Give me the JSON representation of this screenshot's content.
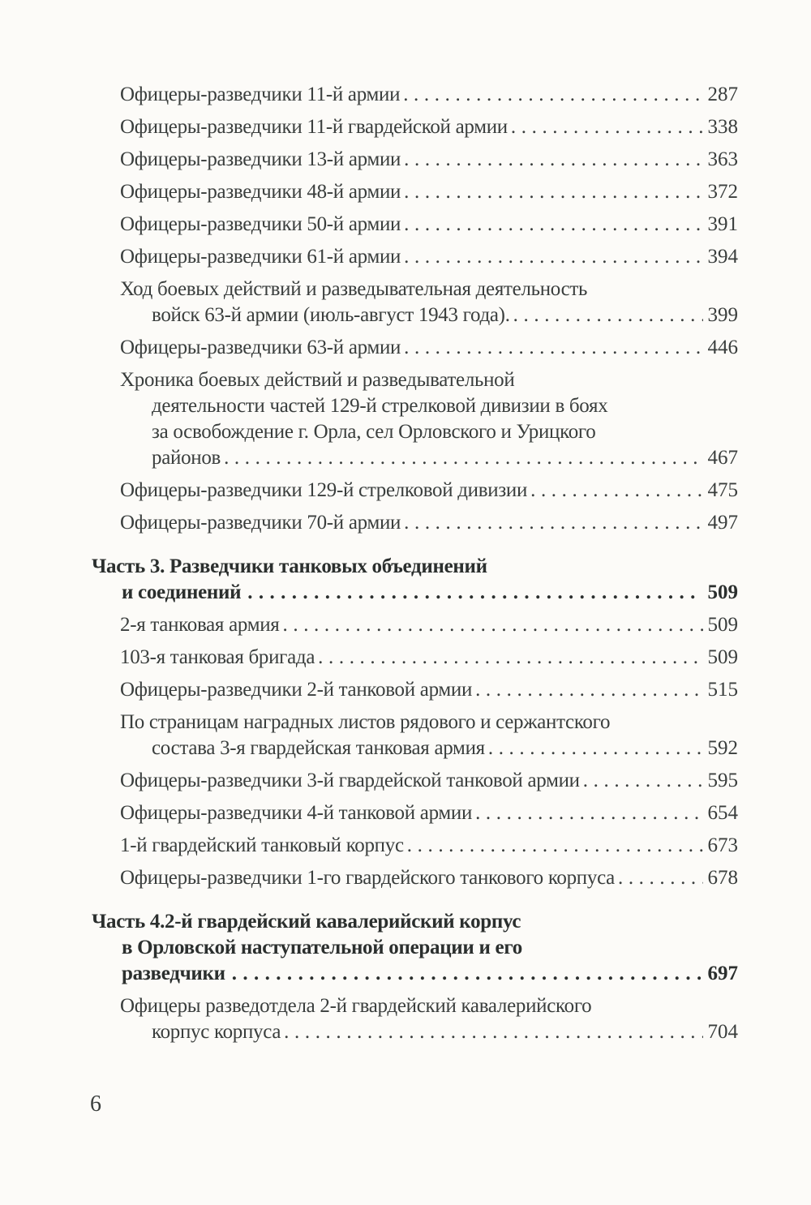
{
  "page": {
    "folio": "6",
    "background_color": "#fcfbf8",
    "text_color": "#3a3e3d",
    "heading_color": "#2b2f2e"
  },
  "toc": {
    "entries": [
      {
        "style": "normal",
        "lines": [
          "Офицеры-разведчики 11-й армии"
        ],
        "page": "287"
      },
      {
        "style": "normal",
        "lines": [
          "Офицеры-разведчики 11-й гвардейской армии"
        ],
        "page": "338"
      },
      {
        "style": "normal",
        "lines": [
          "Офицеры-разведчики 13-й армии"
        ],
        "page": "363"
      },
      {
        "style": "normal",
        "lines": [
          "Офицеры-разведчики 48-й армии"
        ],
        "page": "372"
      },
      {
        "style": "normal",
        "lines": [
          "Офицеры-разведчики 50-й армии"
        ],
        "page": "391"
      },
      {
        "style": "normal",
        "lines": [
          "Офицеры-разведчики 61-й армии"
        ],
        "page": "394"
      },
      {
        "style": "normal",
        "lines": [
          "Ход боевых действий и разведывательная деятельность",
          "войск 63-й армии (июль-август 1943 года)."
        ],
        "page": "399"
      },
      {
        "style": "normal",
        "lines": [
          "Офицеры-разведчики 63-й армии"
        ],
        "page": "446"
      },
      {
        "style": "normal",
        "lines": [
          "Хроника боевых действий и разведывательной",
          "деятельности частей 129-й стрелковой дивизии в боях",
          "за освобождение г. Орла, сел Орловского и Урицкого",
          "районов"
        ],
        "page": "467"
      },
      {
        "style": "normal",
        "lines": [
          "Офицеры-разведчики 129-й стрелковой дивизии"
        ],
        "page": "475"
      },
      {
        "style": "normal",
        "lines": [
          "Офицеры-разведчики 70-й армии"
        ],
        "page": "497"
      },
      {
        "style": "heading",
        "lines": [
          "Часть 3. Разведчики танковых объединений",
          "и соединений"
        ],
        "page": "509"
      },
      {
        "style": "normal",
        "lines": [
          "2-я танковая армия"
        ],
        "page": "509"
      },
      {
        "style": "normal",
        "lines": [
          "103-я танковая бригада"
        ],
        "page": "509"
      },
      {
        "style": "normal",
        "lines": [
          "Офицеры-разведчики 2-й танковой армии"
        ],
        "page": "515"
      },
      {
        "style": "normal",
        "lines": [
          "По страницам наградных листов рядового и сержантского",
          "состава 3-я гвардейская танковая армия"
        ],
        "page": "592"
      },
      {
        "style": "normal",
        "lines": [
          "Офицеры-разведчики 3-й гвардейской танковой армии"
        ],
        "page": "595"
      },
      {
        "style": "normal",
        "lines": [
          "Офицеры-разведчики 4-й танковой армии"
        ],
        "page": "654"
      },
      {
        "style": "normal",
        "lines": [
          "1-й гвардейский танковый корпус"
        ],
        "page": "673"
      },
      {
        "style": "normal",
        "lines": [
          "Офицеры-разведчики 1-го гвардейского танкового корпуса"
        ],
        "page": "678"
      },
      {
        "style": "heading",
        "lines": [
          "Часть 4.2-й гвардейский кавалерийский корпус",
          "в Орловской наступательной операции и его",
          "разведчики"
        ],
        "page": "697"
      },
      {
        "style": "normal",
        "lines": [
          "Офицеры разведотдела 2-й гвардейский кавалерийского",
          "корпус корпуса"
        ],
        "page": "704"
      }
    ]
  }
}
